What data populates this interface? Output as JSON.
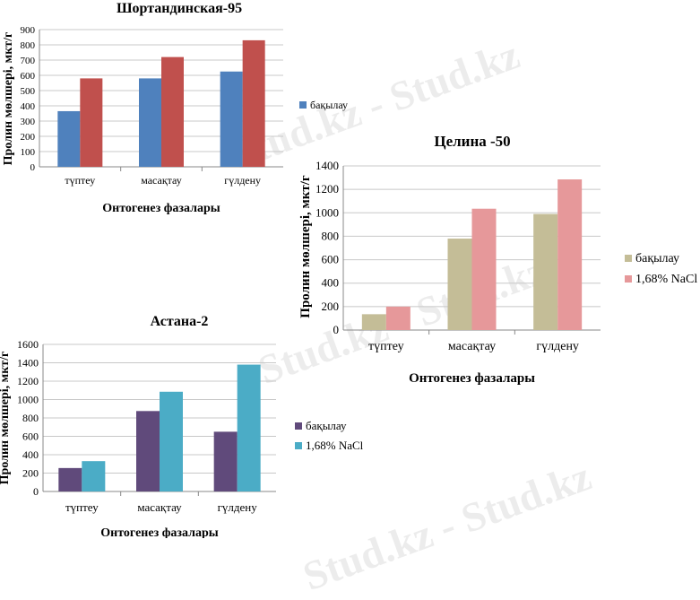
{
  "watermark": "Stud.kz - Stud.kz",
  "chart_data": [
    {
      "type": "bar",
      "title": "Шортандинская-95",
      "xlabel": "Онтогенез фазалары",
      "ylabel": "Пролин мөлшері, мкт/г",
      "categories": [
        "түптеу",
        "масақтау",
        "гүлдену"
      ],
      "ylim": [
        0,
        900
      ],
      "yticks": [
        0,
        100,
        200,
        300,
        400,
        500,
        600,
        700,
        800,
        900
      ],
      "grid": true,
      "legend_position": "right",
      "series": [
        {
          "name": "бақылау",
          "color": "#4f81bd",
          "values": [
            365,
            580,
            625
          ]
        },
        {
          "name": "",
          "color": "#c0504d",
          "values": [
            580,
            720,
            830
          ]
        }
      ]
    },
    {
      "type": "bar",
      "title": "Целина -50",
      "xlabel": "Онтогенез фазалары",
      "ylabel": "Пролин мөлшері, мкт/г",
      "categories": [
        "түптеу",
        "масақтау",
        "гүлдену"
      ],
      "ylim": [
        0,
        1400
      ],
      "yticks": [
        0,
        200,
        400,
        600,
        800,
        1000,
        1200,
        1400
      ],
      "grid": true,
      "legend_position": "right",
      "series": [
        {
          "name": "бақылау",
          "color": "#c4bd97",
          "values": [
            135,
            780,
            990
          ]
        },
        {
          "name": "1,68% NaCl",
          "color": "#e6989a",
          "values": [
            200,
            1035,
            1285
          ]
        }
      ]
    },
    {
      "type": "bar",
      "title": "Астана-2",
      "xlabel": "Онтогенез фазалары",
      "ylabel": "Пролин мөлшері, мкт/г",
      "categories": [
        "түптеу",
        "масақтау",
        "гүлдену"
      ],
      "ylim": [
        0,
        1600
      ],
      "yticks": [
        0,
        200,
        400,
        600,
        800,
        1000,
        1200,
        1400,
        1600
      ],
      "grid": true,
      "legend_position": "right",
      "series": [
        {
          "name": "бақылау",
          "color": "#604a7b",
          "values": [
            255,
            875,
            650
          ]
        },
        {
          "name": "1,68% NaCl",
          "color": "#4bacc6",
          "values": [
            330,
            1085,
            1380
          ]
        }
      ]
    }
  ]
}
